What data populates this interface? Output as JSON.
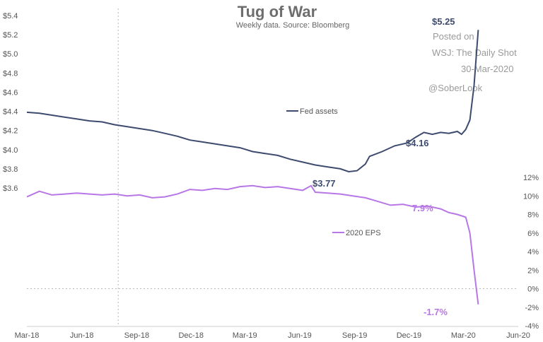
{
  "chart_data": {
    "type": "line",
    "title": "Tug of War",
    "subtitle": "Weekly data.  Source: Bloomberg",
    "watermark": {
      "line1": "Posted on",
      "line2": "WSJ: The Daily Shot",
      "line3": "30-Mar-2020",
      "line4": "@SoberLook"
    },
    "x_ticks": [
      "Mar-18",
      "Jun-18",
      "Sep-18",
      "Dec-18",
      "Mar-19",
      "Jun-19",
      "Sep-19",
      "Dec-19",
      "Mar-20",
      "Jun-20"
    ],
    "left_axis": {
      "ylim": [
        3.6,
        5.4
      ],
      "ticks": [
        "$3.6",
        "$3.8",
        "$4.0",
        "$4.2",
        "$4.4",
        "$4.6",
        "$4.8",
        "$5.0",
        "$5.2",
        "$5.4"
      ],
      "tick_values": [
        3.6,
        3.8,
        4.0,
        4.2,
        4.4,
        4.6,
        4.8,
        5.0,
        5.2,
        5.4
      ]
    },
    "right_axis": {
      "ylim": [
        -4,
        12
      ],
      "ticks": [
        "-4%",
        "-2%",
        "0%",
        "2%",
        "4%",
        "6%",
        "8%",
        "10%",
        "12%"
      ],
      "tick_values": [
        -4,
        -2,
        0,
        2,
        4,
        6,
        8,
        10,
        12
      ]
    },
    "grid": false,
    "series": [
      {
        "name": "Fed assets",
        "axis": "left",
        "color": "#3d4b6e",
        "points": [
          [
            "2018-03-01",
            4.39
          ],
          [
            "2018-03-22",
            4.38
          ],
          [
            "2018-04-12",
            4.36
          ],
          [
            "2018-05-03",
            4.34
          ],
          [
            "2018-05-24",
            4.32
          ],
          [
            "2018-06-14",
            4.3
          ],
          [
            "2018-07-05",
            4.29
          ],
          [
            "2018-07-26",
            4.26
          ],
          [
            "2018-08-16",
            4.24
          ],
          [
            "2018-09-06",
            4.22
          ],
          [
            "2018-09-27",
            4.2
          ],
          [
            "2018-10-18",
            4.17
          ],
          [
            "2018-11-08",
            4.14
          ],
          [
            "2018-11-29",
            4.1
          ],
          [
            "2018-12-20",
            4.08
          ],
          [
            "2019-01-10",
            4.06
          ],
          [
            "2019-01-31",
            4.04
          ],
          [
            "2019-02-21",
            4.02
          ],
          [
            "2019-03-14",
            3.98
          ],
          [
            "2019-04-04",
            3.96
          ],
          [
            "2019-04-25",
            3.94
          ],
          [
            "2019-05-16",
            3.9
          ],
          [
            "2019-06-06",
            3.87
          ],
          [
            "2019-06-27",
            3.84
          ],
          [
            "2019-07-18",
            3.82
          ],
          [
            "2019-08-08",
            3.8
          ],
          [
            "2019-08-22",
            3.77
          ],
          [
            "2019-09-05",
            3.78
          ],
          [
            "2019-09-19",
            3.85
          ],
          [
            "2019-09-26",
            3.93
          ],
          [
            "2019-10-17",
            3.98
          ],
          [
            "2019-11-07",
            4.04
          ],
          [
            "2019-11-28",
            4.07
          ],
          [
            "2019-12-12",
            4.13
          ],
          [
            "2019-12-26",
            4.18
          ],
          [
            "2020-01-09",
            4.16
          ],
          [
            "2020-01-23",
            4.18
          ],
          [
            "2020-02-06",
            4.17
          ],
          [
            "2020-02-20",
            4.19
          ],
          [
            "2020-02-27",
            4.16
          ],
          [
            "2020-03-05",
            4.21
          ],
          [
            "2020-03-12",
            4.31
          ],
          [
            "2020-03-19",
            4.67
          ],
          [
            "2020-03-26",
            5.25
          ]
        ]
      },
      {
        "name": "2020 EPS",
        "axis": "right",
        "color": "#b777e6",
        "points": [
          [
            "2018-03-01",
            9.9
          ],
          [
            "2018-03-22",
            10.5
          ],
          [
            "2018-04-12",
            10.1
          ],
          [
            "2018-05-03",
            10.2
          ],
          [
            "2018-05-24",
            10.3
          ],
          [
            "2018-06-14",
            10.2
          ],
          [
            "2018-07-05",
            10.1
          ],
          [
            "2018-07-26",
            10.2
          ],
          [
            "2018-08-16",
            10.0
          ],
          [
            "2018-09-06",
            10.1
          ],
          [
            "2018-09-27",
            9.8
          ],
          [
            "2018-10-18",
            9.9
          ],
          [
            "2018-11-08",
            10.2
          ],
          [
            "2018-11-29",
            10.7
          ],
          [
            "2018-12-20",
            10.6
          ],
          [
            "2019-01-10",
            10.8
          ],
          [
            "2019-01-31",
            10.7
          ],
          [
            "2019-02-21",
            11.0
          ],
          [
            "2019-03-14",
            11.1
          ],
          [
            "2019-04-04",
            10.9
          ],
          [
            "2019-04-25",
            11.0
          ],
          [
            "2019-05-16",
            10.8
          ],
          [
            "2019-06-06",
            10.6
          ],
          [
            "2019-06-20",
            11.1
          ],
          [
            "2019-06-27",
            10.4
          ],
          [
            "2019-07-18",
            10.3
          ],
          [
            "2019-08-08",
            10.2
          ],
          [
            "2019-08-29",
            10.0
          ],
          [
            "2019-09-19",
            9.8
          ],
          [
            "2019-10-10",
            9.4
          ],
          [
            "2019-10-31",
            9.0
          ],
          [
            "2019-11-21",
            9.1
          ],
          [
            "2019-12-12",
            8.8
          ],
          [
            "2020-01-02",
            8.9
          ],
          [
            "2020-01-23",
            8.6
          ],
          [
            "2020-02-06",
            8.2
          ],
          [
            "2020-02-20",
            8.0
          ],
          [
            "2020-03-05",
            7.7
          ],
          [
            "2020-03-12",
            6.0
          ],
          [
            "2020-03-19",
            2.0
          ],
          [
            "2020-03-26",
            -1.7
          ]
        ]
      }
    ],
    "annotations": [
      {
        "text": "$5.25",
        "series": "Fed assets"
      },
      {
        "text": "$4.16",
        "series": "Fed assets"
      },
      {
        "text": "$3.77",
        "series": "Fed assets"
      },
      {
        "text": "7.9%",
        "series": "2020 EPS"
      },
      {
        "text": "-1.7%",
        "series": "2020 EPS"
      }
    ],
    "reference_lines": [
      {
        "orientation": "vertical",
        "at": "2018-08-01",
        "style": "dotted"
      },
      {
        "orientation": "horizontal",
        "axis": "right",
        "at": 0,
        "style": "dotted"
      }
    ],
    "legend": [
      {
        "text": "Fed assets",
        "series": "Fed assets"
      },
      {
        "text": "2020 EPS",
        "series": "2020 EPS"
      }
    ],
    "legend_placement": "inline"
  }
}
